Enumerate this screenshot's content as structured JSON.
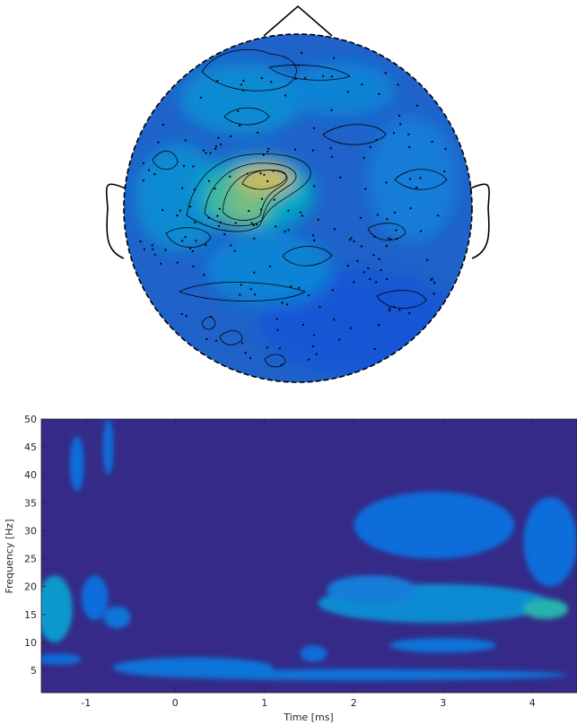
{
  "chart_data": [
    {
      "type": "heatmap",
      "title": "",
      "colormap": "parula",
      "shape": "head-topography",
      "contour_lines": true,
      "sensor_markers": true,
      "hotspot_peak": 1.0
    },
    {
      "type": "heatmap",
      "title": "",
      "xlabel": "Time [ms]",
      "ylabel": "Frequency [Hz]",
      "xlim": [
        -1.5,
        4.5
      ],
      "ylim": [
        1,
        50
      ],
      "xticks": [
        -1,
        0,
        1,
        2,
        3,
        4
      ],
      "xtick_labels": [
        "-1",
        "0",
        "1",
        "2",
        "3",
        "4"
      ],
      "yticks": [
        5,
        10,
        15,
        20,
        25,
        30,
        35,
        40,
        45,
        50
      ],
      "ytick_labels": [
        "5",
        "10",
        "15",
        "20",
        "25",
        "30",
        "35",
        "40",
        "45",
        "50"
      ],
      "colormap": "parula",
      "grid": false,
      "blobs": [
        {
          "t": 0.35,
          "f": 5.5,
          "dt": 0.35,
          "df": 1.3,
          "v": 1.0
        },
        {
          "t": 0.2,
          "f": 5.5,
          "dt": 0.9,
          "df": 1.8,
          "v": 0.35
        },
        {
          "t": 2.1,
          "f": 4.2,
          "dt": 2.3,
          "df": 1.0,
          "v": 0.35
        },
        {
          "t": 2.8,
          "f": 16.5,
          "dt": 0.5,
          "df": 2.2,
          "v": 0.95
        },
        {
          "t": 3.3,
          "f": 16.0,
          "dt": 0.45,
          "df": 2.2,
          "v": 0.92
        },
        {
          "t": 2.45,
          "f": 17.0,
          "dt": 0.35,
          "df": 2.0,
          "v": 0.7
        },
        {
          "t": 2.9,
          "f": 17.0,
          "dt": 1.3,
          "df": 3.5,
          "v": 0.45
        },
        {
          "t": 4.15,
          "f": 16.0,
          "dt": 0.25,
          "df": 1.8,
          "v": 0.65
        },
        {
          "t": 2.2,
          "f": 19.5,
          "dt": 0.5,
          "df": 2.5,
          "v": 0.4
        },
        {
          "t": 3.0,
          "f": 9.5,
          "dt": 0.6,
          "df": 1.3,
          "v": 0.35
        },
        {
          "t": 2.9,
          "f": 31.0,
          "dt": 0.9,
          "df": 6.0,
          "v": 0.3
        },
        {
          "t": 4.2,
          "f": 28.0,
          "dt": 0.3,
          "df": 8.0,
          "v": 0.3
        },
        {
          "t": -1.35,
          "f": 16.0,
          "dt": 0.2,
          "df": 6.0,
          "v": 0.5
        },
        {
          "t": -0.9,
          "f": 18.0,
          "dt": 0.15,
          "df": 4.0,
          "v": 0.3
        },
        {
          "t": -0.65,
          "f": 14.5,
          "dt": 0.15,
          "df": 2.0,
          "v": 0.35
        },
        {
          "t": -1.3,
          "f": 7.0,
          "dt": 0.25,
          "df": 1.0,
          "v": 0.3
        },
        {
          "t": -1.1,
          "f": 42.0,
          "dt": 0.08,
          "df": 5.0,
          "v": 0.3
        },
        {
          "t": -0.75,
          "f": 45.0,
          "dt": 0.06,
          "df": 5.0,
          "v": 0.3
        },
        {
          "t": 1.55,
          "f": 8.0,
          "dt": 0.15,
          "df": 1.5,
          "v": 0.3
        }
      ]
    }
  ]
}
